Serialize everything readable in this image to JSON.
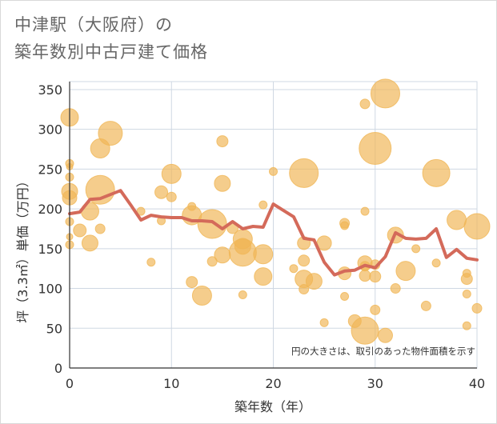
{
  "title": {
    "line1": "中津駅（大阪府）の",
    "line2": "築年数別中古戸建て価格"
  },
  "colors": {
    "bubble": "#f0b656",
    "line": "#d46a5a",
    "grid": "#cfd8e3"
  },
  "chart_data": {
    "type": "scatter",
    "xlabel": "築年数（年）",
    "ylabel": "坪（3.3㎡）単価（万円）",
    "xlim": [
      0,
      40
    ],
    "ylim": [
      0,
      360
    ],
    "xticks": [
      0,
      10,
      20,
      30,
      40
    ],
    "yticks": [
      0,
      50,
      100,
      150,
      200,
      250,
      300,
      350
    ],
    "note": "円の大きさは、取引のあった物件面積を示す",
    "bubbles": [
      {
        "x": 0,
        "y": 315,
        "s": 11
      },
      {
        "x": 0,
        "y": 257,
        "s": 5
      },
      {
        "x": 0,
        "y": 253,
        "s": 4
      },
      {
        "x": 0,
        "y": 240,
        "s": 5
      },
      {
        "x": 0,
        "y": 222,
        "s": 10
      },
      {
        "x": 0,
        "y": 214,
        "s": 9
      },
      {
        "x": 0,
        "y": 184,
        "s": 5
      },
      {
        "x": 0,
        "y": 165,
        "s": 4
      },
      {
        "x": 0,
        "y": 155,
        "s": 5
      },
      {
        "x": 1,
        "y": 173,
        "s": 8
      },
      {
        "x": 2,
        "y": 197,
        "s": 11
      },
      {
        "x": 2,
        "y": 157,
        "s": 10
      },
      {
        "x": 3,
        "y": 276,
        "s": 12
      },
      {
        "x": 3,
        "y": 224,
        "s": 18
      },
      {
        "x": 3,
        "y": 175,
        "s": 6
      },
      {
        "x": 4,
        "y": 295,
        "s": 15
      },
      {
        "x": 7,
        "y": 197,
        "s": 5
      },
      {
        "x": 8,
        "y": 133,
        "s": 5
      },
      {
        "x": 9,
        "y": 221,
        "s": 8
      },
      {
        "x": 9,
        "y": 185,
        "s": 5
      },
      {
        "x": 10,
        "y": 244,
        "s": 12
      },
      {
        "x": 10,
        "y": 215,
        "s": 6
      },
      {
        "x": 12,
        "y": 203,
        "s": 5
      },
      {
        "x": 12,
        "y": 192,
        "s": 12
      },
      {
        "x": 12,
        "y": 108,
        "s": 7
      },
      {
        "x": 13,
        "y": 91,
        "s": 12
      },
      {
        "x": 14,
        "y": 181,
        "s": 18
      },
      {
        "x": 14,
        "y": 134,
        "s": 6
      },
      {
        "x": 15,
        "y": 285,
        "s": 7
      },
      {
        "x": 15,
        "y": 232,
        "s": 10
      },
      {
        "x": 15,
        "y": 142,
        "s": 10
      },
      {
        "x": 16,
        "y": 176,
        "s": 7
      },
      {
        "x": 17,
        "y": 162,
        "s": 12
      },
      {
        "x": 17,
        "y": 153,
        "s": 10
      },
      {
        "x": 17,
        "y": 145,
        "s": 17
      },
      {
        "x": 17,
        "y": 92,
        "s": 5
      },
      {
        "x": 19,
        "y": 205,
        "s": 5
      },
      {
        "x": 19,
        "y": 143,
        "s": 12
      },
      {
        "x": 19,
        "y": 115,
        "s": 11
      },
      {
        "x": 20,
        "y": 247,
        "s": 5
      },
      {
        "x": 22,
        "y": 125,
        "s": 5
      },
      {
        "x": 23,
        "y": 245,
        "s": 18
      },
      {
        "x": 23,
        "y": 157,
        "s": 8
      },
      {
        "x": 23,
        "y": 135,
        "s": 7
      },
      {
        "x": 23,
        "y": 112,
        "s": 11
      },
      {
        "x": 23,
        "y": 99,
        "s": 6
      },
      {
        "x": 24,
        "y": 109,
        "s": 10
      },
      {
        "x": 25,
        "y": 157,
        "s": 9
      },
      {
        "x": 25,
        "y": 57,
        "s": 5
      },
      {
        "x": 27,
        "y": 182,
        "s": 6
      },
      {
        "x": 27,
        "y": 179,
        "s": 5
      },
      {
        "x": 27,
        "y": 119,
        "s": 8
      },
      {
        "x": 27,
        "y": 90,
        "s": 5
      },
      {
        "x": 28,
        "y": 59,
        "s": 8
      },
      {
        "x": 29,
        "y": 332,
        "s": 6
      },
      {
        "x": 29,
        "y": 197,
        "s": 5
      },
      {
        "x": 29,
        "y": 132,
        "s": 9
      },
      {
        "x": 29,
        "y": 128,
        "s": 6
      },
      {
        "x": 29,
        "y": 116,
        "s": 7
      },
      {
        "x": 29,
        "y": 47,
        "s": 17
      },
      {
        "x": 30,
        "y": 276,
        "s": 20
      },
      {
        "x": 30,
        "y": 130,
        "s": 6
      },
      {
        "x": 30,
        "y": 115,
        "s": 7
      },
      {
        "x": 30,
        "y": 73,
        "s": 6
      },
      {
        "x": 31,
        "y": 345,
        "s": 18
      },
      {
        "x": 31,
        "y": 41,
        "s": 9
      },
      {
        "x": 32,
        "y": 167,
        "s": 10
      },
      {
        "x": 32,
        "y": 100,
        "s": 6
      },
      {
        "x": 33,
        "y": 122,
        "s": 12
      },
      {
        "x": 34,
        "y": 150,
        "s": 5
      },
      {
        "x": 35,
        "y": 78,
        "s": 6
      },
      {
        "x": 36,
        "y": 245,
        "s": 17
      },
      {
        "x": 36,
        "y": 132,
        "s": 5
      },
      {
        "x": 38,
        "y": 186,
        "s": 12
      },
      {
        "x": 39,
        "y": 119,
        "s": 5
      },
      {
        "x": 39,
        "y": 112,
        "s": 7
      },
      {
        "x": 39,
        "y": 93,
        "s": 5
      },
      {
        "x": 39,
        "y": 53,
        "s": 5
      },
      {
        "x": 40,
        "y": 178,
        "s": 16
      },
      {
        "x": 40,
        "y": 75,
        "s": 6
      }
    ],
    "series": [
      {
        "x": [
          0,
          1,
          2,
          3,
          4,
          5,
          6,
          7,
          8,
          9,
          10,
          11,
          12,
          13,
          14,
          15,
          16,
          17,
          18,
          19,
          20,
          21,
          22,
          23,
          24,
          25,
          26,
          27,
          28,
          29,
          30,
          31,
          32,
          33,
          34,
          35,
          36,
          37,
          38,
          39,
          40
        ],
        "values": [
          194,
          196,
          212,
          213,
          218,
          223,
          205,
          186,
          192,
          190,
          189,
          189,
          185,
          185,
          184,
          175,
          184,
          175,
          178,
          177,
          206,
          198,
          190,
          163,
          161,
          133,
          117,
          122,
          123,
          129,
          126,
          140,
          170,
          163,
          162,
          163,
          175,
          139,
          149,
          138,
          136
        ]
      }
    ]
  }
}
